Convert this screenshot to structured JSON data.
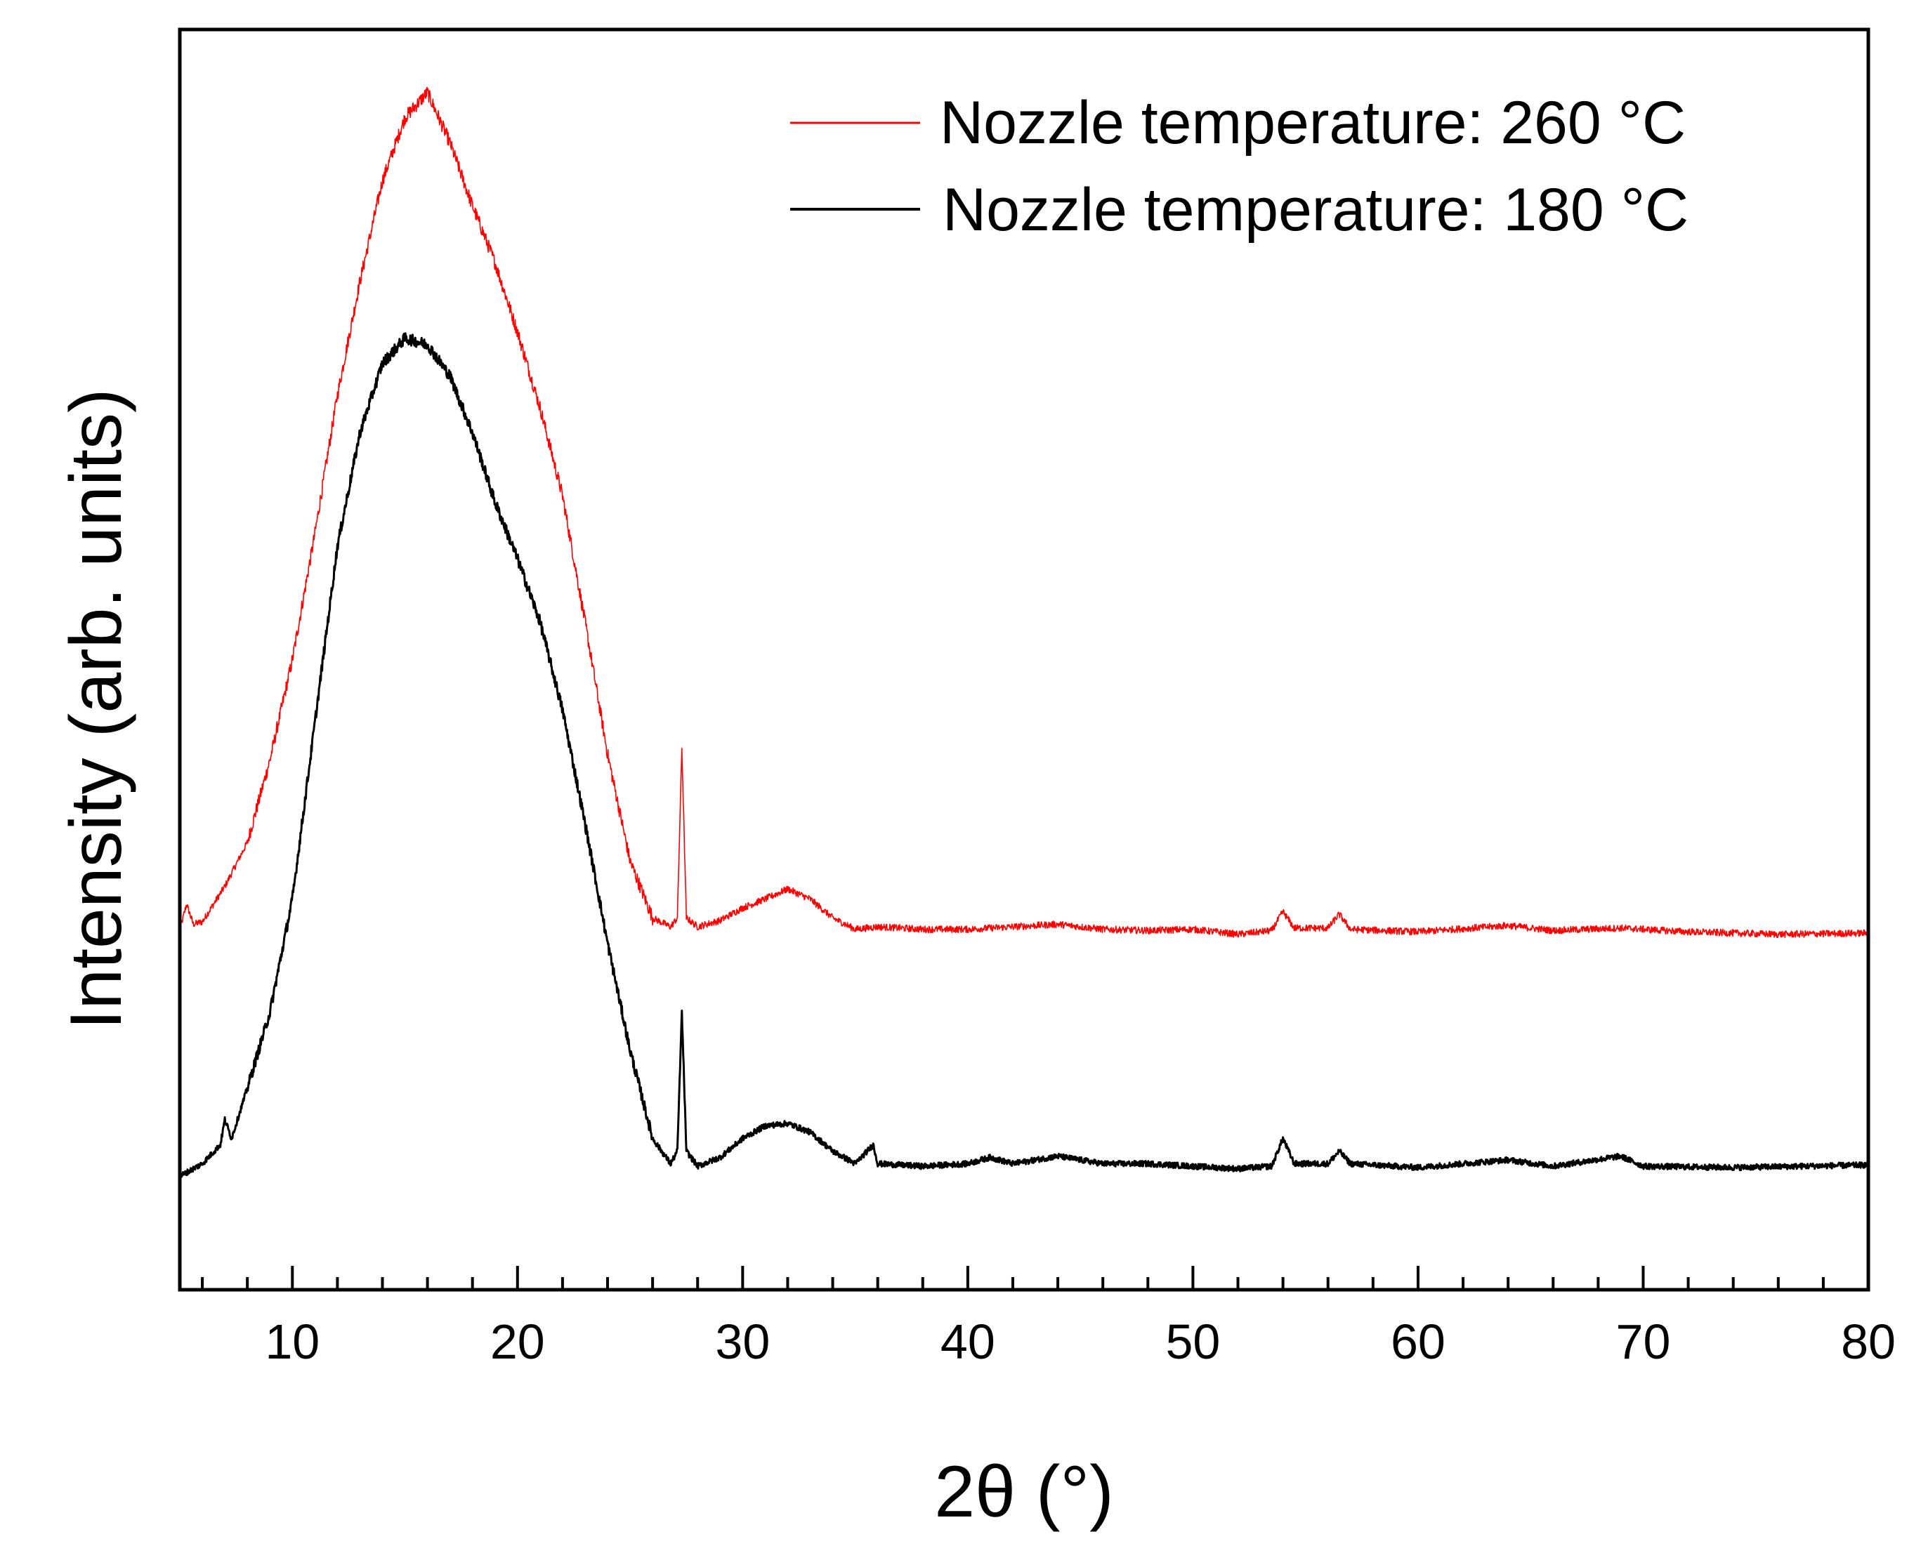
{
  "chart_data": {
    "type": "line",
    "title": "",
    "xlabel": "2θ (°)",
    "ylabel": "Intensity (arb. units)",
    "xlim": [
      5,
      80
    ],
    "ylim": [
      0,
      100
    ],
    "y_ticks_shown": false,
    "x_ticks": [
      10,
      20,
      30,
      40,
      50,
      60,
      70,
      80
    ],
    "x_tick_labels": [
      "10",
      "20",
      "30",
      "40",
      "50",
      "60",
      "70",
      "80"
    ],
    "x_minor_step": 2,
    "grid": false,
    "legend_position": "top-right",
    "series": [
      {
        "name": "Nozzle temperature: 260 °C",
        "color": "#ff0000",
        "points": [
          [
            5,
            28.5
          ],
          [
            5.3,
            30.6
          ],
          [
            5.6,
            29.0
          ],
          [
            6,
            29.2
          ],
          [
            7,
            32.0
          ],
          [
            8,
            35.5
          ],
          [
            9,
            42.0
          ],
          [
            10,
            50.0
          ],
          [
            11,
            60.0
          ],
          [
            12,
            71.0
          ],
          [
            13,
            80.0
          ],
          [
            14,
            88.0
          ],
          [
            15,
            93.0
          ],
          [
            16,
            95.0
          ],
          [
            17,
            91.0
          ],
          [
            18,
            86.0
          ],
          [
            19,
            81.5
          ],
          [
            20,
            76.0
          ],
          [
            21,
            70.0
          ],
          [
            22,
            63.0
          ],
          [
            23,
            53.0
          ],
          [
            24,
            42.5
          ],
          [
            25,
            34.0
          ],
          [
            26,
            29.5
          ],
          [
            26.8,
            28.8
          ],
          [
            27.1,
            29.5
          ],
          [
            27.3,
            43.0
          ],
          [
            27.5,
            29.5
          ],
          [
            28,
            28.8
          ],
          [
            29,
            29.3
          ],
          [
            30,
            30.3
          ],
          [
            31,
            31.0
          ],
          [
            32,
            31.8
          ],
          [
            33,
            31.0
          ],
          [
            34,
            29.5
          ],
          [
            35,
            28.6
          ],
          [
            36,
            28.8
          ],
          [
            38,
            28.6
          ],
          [
            40,
            28.6
          ],
          [
            42,
            28.8
          ],
          [
            44,
            29.0
          ],
          [
            46,
            28.6
          ],
          [
            48,
            28.5
          ],
          [
            50,
            28.6
          ],
          [
            52,
            28.2
          ],
          [
            53.5,
            28.5
          ],
          [
            54,
            30.0
          ],
          [
            54.5,
            28.7
          ],
          [
            56,
            28.7
          ],
          [
            56.5,
            29.8
          ],
          [
            57,
            28.6
          ],
          [
            60,
            28.4
          ],
          [
            64,
            28.9
          ],
          [
            66,
            28.5
          ],
          [
            69,
            28.7
          ],
          [
            72,
            28.4
          ],
          [
            76,
            28.2
          ],
          [
            80,
            28.3
          ]
        ]
      },
      {
        "name": "Nozzle temperature: 180 °C",
        "color": "#000000",
        "points": [
          [
            5,
            9.0
          ],
          [
            6,
            10.0
          ],
          [
            6.8,
            11.5
          ],
          [
            7,
            13.5
          ],
          [
            7.3,
            12.0
          ],
          [
            8,
            16.0
          ],
          [
            9,
            22.0
          ],
          [
            10,
            31.0
          ],
          [
            11,
            45.0
          ],
          [
            12,
            59.0
          ],
          [
            13,
            68.0
          ],
          [
            14,
            73.5
          ],
          [
            15,
            75.5
          ],
          [
            16,
            75.0
          ],
          [
            17,
            72.5
          ],
          [
            18,
            68.0
          ],
          [
            19,
            62.5
          ],
          [
            20,
            58.0
          ],
          [
            21,
            53.0
          ],
          [
            22,
            46.0
          ],
          [
            23,
            37.0
          ],
          [
            24,
            27.5
          ],
          [
            25,
            19.0
          ],
          [
            26,
            12.0
          ],
          [
            26.8,
            10.0
          ],
          [
            27.1,
            11.0
          ],
          [
            27.3,
            22.0
          ],
          [
            27.5,
            11.0
          ],
          [
            28,
            9.8
          ],
          [
            29,
            10.5
          ],
          [
            30,
            12.0
          ],
          [
            31,
            13.0
          ],
          [
            32,
            13.2
          ],
          [
            33,
            12.5
          ],
          [
            34,
            11.0
          ],
          [
            35,
            10.0
          ],
          [
            35.8,
            11.5
          ],
          [
            36,
            10.0
          ],
          [
            38,
            9.8
          ],
          [
            40,
            10.0
          ],
          [
            41,
            10.5
          ],
          [
            42,
            10.0
          ],
          [
            44,
            10.6
          ],
          [
            46,
            10.0
          ],
          [
            48,
            10.0
          ],
          [
            50,
            9.8
          ],
          [
            52,
            9.6
          ],
          [
            53.5,
            9.8
          ],
          [
            54,
            12.0
          ],
          [
            54.5,
            10.0
          ],
          [
            56,
            10.0
          ],
          [
            56.5,
            11.0
          ],
          [
            57,
            10.0
          ],
          [
            60,
            9.7
          ],
          [
            64,
            10.3
          ],
          [
            66,
            9.8
          ],
          [
            69,
            10.6
          ],
          [
            70,
            9.8
          ],
          [
            74,
            9.7
          ],
          [
            80,
            9.9
          ]
        ]
      }
    ]
  }
}
